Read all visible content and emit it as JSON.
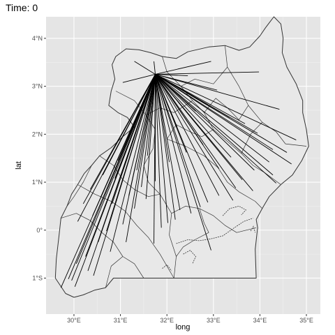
{
  "title": "Time: 0",
  "colors": {
    "panel": "#e5e5e5",
    "grid_major": "#ffffff",
    "grid_minor": "#f0f0f0",
    "country_fill": "#e8e8e8",
    "border": "#333333",
    "segment": "#000000",
    "tick_label": "#4d4d4d"
  },
  "chart_data": {
    "type": "map-segments",
    "title": "Time: 0",
    "xlabel": "long",
    "ylabel": "lat",
    "xlim": [
      29.4,
      35.3
    ],
    "ylim": [
      -1.75,
      4.45
    ],
    "x_ticks": [
      {
        "value": 30,
        "label": "30°E"
      },
      {
        "value": 31,
        "label": "31°E"
      },
      {
        "value": 32,
        "label": "32°E"
      },
      {
        "value": 33,
        "label": "33°E"
      },
      {
        "value": 34,
        "label": "34°E"
      },
      {
        "value": 35,
        "label": "35°E"
      }
    ],
    "y_ticks": [
      {
        "value": -1,
        "label": "1°S"
      },
      {
        "value": 0,
        "label": "0°"
      },
      {
        "value": 1,
        "label": "1°N"
      },
      {
        "value": 2,
        "label": "2°N"
      },
      {
        "value": 3,
        "label": "3°N"
      },
      {
        "value": 4,
        "label": "4°N"
      }
    ],
    "grid": true,
    "origin": [
      31.75,
      3.25
    ],
    "outline": [
      [
        29.6,
        -1.0
      ],
      [
        29.62,
        -0.6
      ],
      [
        29.68,
        -0.1
      ],
      [
        29.72,
        0.25
      ],
      [
        29.85,
        0.5
      ],
      [
        29.95,
        0.75
      ],
      [
        30.08,
        0.95
      ],
      [
        30.22,
        1.18
      ],
      [
        30.38,
        1.35
      ],
      [
        30.55,
        1.55
      ],
      [
        30.8,
        1.72
      ],
      [
        31.05,
        1.95
      ],
      [
        31.3,
        2.15
      ],
      [
        31.15,
        2.35
      ],
      [
        30.95,
        2.45
      ],
      [
        30.75,
        2.6
      ],
      [
        30.8,
        2.9
      ],
      [
        30.88,
        3.15
      ],
      [
        30.82,
        3.45
      ],
      [
        30.9,
        3.62
      ],
      [
        31.12,
        3.78
      ],
      [
        31.4,
        3.76
      ],
      [
        31.65,
        3.7
      ],
      [
        31.9,
        3.62
      ],
      [
        32.2,
        3.58
      ],
      [
        32.45,
        3.72
      ],
      [
        32.9,
        3.82
      ],
      [
        33.25,
        3.85
      ],
      [
        33.55,
        3.75
      ],
      [
        33.78,
        3.82
      ],
      [
        34.0,
        4.05
      ],
      [
        34.12,
        4.22
      ],
      [
        34.3,
        4.45
      ],
      [
        34.45,
        4.3
      ],
      [
        34.5,
        4.0
      ],
      [
        34.48,
        3.7
      ],
      [
        34.58,
        3.4
      ],
      [
        34.78,
        3.05
      ],
      [
        34.92,
        2.7
      ],
      [
        34.92,
        2.45
      ],
      [
        35.0,
        2.1
      ],
      [
        35.05,
        1.75
      ],
      [
        34.9,
        1.45
      ],
      [
        34.7,
        1.15
      ],
      [
        34.45,
        0.95
      ],
      [
        34.2,
        0.7
      ],
      [
        34.05,
        0.45
      ],
      [
        33.92,
        0.22
      ],
      [
        33.95,
        0.05
      ],
      [
        33.9,
        -0.4
      ],
      [
        33.92,
        -1.0
      ],
      [
        32.5,
        -1.0
      ],
      [
        31.5,
        -1.0
      ],
      [
        30.85,
        -1.0
      ],
      [
        30.68,
        -1.2
      ],
      [
        30.45,
        -1.25
      ],
      [
        30.2,
        -1.35
      ],
      [
        30.0,
        -1.4
      ],
      [
        29.82,
        -1.32
      ],
      [
        29.6,
        -1.0
      ]
    ],
    "internal_borders": [
      [
        [
          30.9,
          2.9
        ],
        [
          31.3,
          2.7
        ],
        [
          31.55,
          2.4
        ],
        [
          31.75,
          2.1
        ],
        [
          31.7,
          1.7
        ],
        [
          31.5,
          1.35
        ],
        [
          31.6,
          1.0
        ],
        [
          31.85,
          0.75
        ],
        [
          32.1,
          0.35
        ],
        [
          32.05,
          -0.1
        ],
        [
          32.2,
          -0.55
        ],
        [
          32.15,
          -1.0
        ]
      ],
      [
        [
          31.9,
          3.62
        ],
        [
          32.0,
          3.3
        ],
        [
          32.3,
          3.0
        ],
        [
          32.55,
          2.7
        ],
        [
          32.8,
          2.45
        ],
        [
          33.0,
          2.1
        ],
        [
          33.3,
          1.85
        ],
        [
          33.6,
          1.6
        ],
        [
          33.85,
          1.35
        ],
        [
          34.1,
          1.2
        ],
        [
          34.45,
          0.95
        ]
      ],
      [
        [
          33.25,
          3.85
        ],
        [
          33.3,
          3.4
        ],
        [
          33.55,
          3.0
        ],
        [
          33.75,
          2.6
        ],
        [
          34.05,
          2.25
        ],
        [
          34.35,
          2.05
        ],
        [
          34.55,
          1.8
        ],
        [
          35.0,
          1.75
        ]
      ],
      [
        [
          29.72,
          0.25
        ],
        [
          30.05,
          0.35
        ],
        [
          30.35,
          0.2
        ],
        [
          30.6,
          -0.05
        ],
        [
          30.85,
          -0.25
        ],
        [
          31.05,
          -0.55
        ],
        [
          31.3,
          -0.7
        ],
        [
          31.5,
          -1.0
        ]
      ],
      [
        [
          30.08,
          0.95
        ],
        [
          30.45,
          0.75
        ],
        [
          30.8,
          0.6
        ],
        [
          31.1,
          0.4
        ],
        [
          31.35,
          0.1
        ],
        [
          31.6,
          -0.15
        ],
        [
          31.85,
          -0.5
        ],
        [
          32.15,
          -1.0
        ]
      ],
      [
        [
          30.55,
          1.55
        ],
        [
          30.85,
          1.35
        ],
        [
          31.05,
          1.05
        ],
        [
          31.3,
          0.85
        ],
        [
          31.6,
          0.7
        ],
        [
          31.85,
          0.75
        ]
      ],
      [
        [
          32.3,
          3.0
        ],
        [
          32.6,
          3.15
        ],
        [
          33.0,
          3.05
        ],
        [
          33.3,
          3.4
        ]
      ],
      [
        [
          32.0,
          1.9
        ],
        [
          32.4,
          1.75
        ],
        [
          32.8,
          1.55
        ],
        [
          33.1,
          1.3
        ],
        [
          33.3,
          1.0
        ],
        [
          33.55,
          0.8
        ],
        [
          33.9,
          0.6
        ],
        [
          34.05,
          0.45
        ]
      ],
      [
        [
          32.1,
          0.35
        ],
        [
          32.4,
          0.5
        ],
        [
          32.7,
          0.45
        ],
        [
          33.0,
          0.3
        ],
        [
          33.25,
          0.1
        ],
        [
          33.5,
          -0.05
        ],
        [
          33.92,
          0.05
        ]
      ],
      [
        [
          31.55,
          2.4
        ],
        [
          31.85,
          2.55
        ],
        [
          32.15,
          2.45
        ],
        [
          32.55,
          2.7
        ]
      ],
      [
        [
          30.38,
          1.35
        ],
        [
          30.2,
          1.0
        ],
        [
          30.0,
          0.7
        ],
        [
          29.85,
          0.5
        ]
      ],
      [
        [
          32.8,
          2.45
        ],
        [
          33.05,
          2.75
        ],
        [
          33.3,
          2.55
        ],
        [
          33.55,
          2.3
        ],
        [
          33.75,
          2.6
        ]
      ],
      [
        [
          33.0,
          2.1
        ],
        [
          32.75,
          1.95
        ],
        [
          32.5,
          2.05
        ],
        [
          32.2,
          2.2
        ],
        [
          32.0,
          1.9
        ]
      ],
      [
        [
          34.05,
          2.25
        ],
        [
          33.8,
          2.0
        ],
        [
          33.6,
          1.6
        ]
      ],
      [
        [
          31.05,
          -0.55
        ],
        [
          30.8,
          -0.75
        ],
        [
          30.68,
          -1.2
        ]
      ],
      [
        [
          32.7,
          0.45
        ],
        [
          32.8,
          0.15
        ],
        [
          32.9,
          -0.05
        ],
        [
          32.6,
          -0.2
        ],
        [
          32.35,
          -0.35
        ],
        [
          32.2,
          -0.55
        ]
      ]
    ],
    "lake_shore": [
      [
        [
          32.2,
          -0.28
        ],
        [
          32.45,
          -0.2
        ],
        [
          32.7,
          -0.22
        ],
        [
          32.95,
          -0.18
        ],
        [
          33.2,
          -0.12
        ],
        [
          33.45,
          0.05
        ],
        [
          33.65,
          0.18
        ],
        [
          33.85,
          0.25
        ]
      ],
      [
        [
          32.35,
          -0.5
        ],
        [
          32.5,
          -0.42
        ],
        [
          32.62,
          -0.55
        ],
        [
          32.55,
          -0.7
        ]
      ],
      [
        [
          33.2,
          0.3
        ],
        [
          33.35,
          0.45
        ],
        [
          33.55,
          0.5
        ],
        [
          33.7,
          0.42
        ],
        [
          33.6,
          0.32
        ]
      ],
      [
        [
          31.9,
          -0.8
        ],
        [
          32.0,
          -0.72
        ],
        [
          32.1,
          -0.85
        ]
      ],
      [
        [
          33.8,
          -0.02
        ],
        [
          33.86,
          0.08
        ],
        [
          33.9,
          -0.05
        ]
      ]
    ],
    "segment_ends": [
      [
        31.3,
        3.52
      ],
      [
        31.05,
        3.08
      ],
      [
        31.72,
        3.52
      ],
      [
        32.95,
        3.52
      ],
      [
        33.98,
        3.3
      ],
      [
        32.45,
        3.22
      ],
      [
        33.08,
        2.92
      ],
      [
        34.42,
        2.52
      ],
      [
        33.35,
        2.35
      ],
      [
        33.68,
        2.22
      ],
      [
        34.78,
        1.88
      ],
      [
        33.95,
        2.02
      ],
      [
        34.28,
        1.68
      ],
      [
        34.58,
        1.62
      ],
      [
        34.68,
        1.38
      ],
      [
        34.2,
        1.42
      ],
      [
        33.88,
        1.25
      ],
      [
        33.62,
        1.05
      ],
      [
        34.28,
        1.15
      ],
      [
        34.35,
        0.98
      ],
      [
        33.38,
        1.52
      ],
      [
        33.12,
        1.28
      ],
      [
        33.48,
        0.88
      ],
      [
        33.85,
        0.82
      ],
      [
        33.42,
        0.62
      ],
      [
        33.12,
        0.72
      ],
      [
        32.88,
        0.58
      ],
      [
        32.72,
        0.48
      ],
      [
        32.52,
        0.35
      ],
      [
        32.28,
        0.42
      ],
      [
        32.18,
        0.22
      ],
      [
        32.02,
        0.15
      ],
      [
        31.88,
        0.05
      ],
      [
        31.72,
        -0.28
      ],
      [
        32.95,
        -0.42
      ],
      [
        32.05,
        1.42
      ],
      [
        32.42,
        1.62
      ],
      [
        32.78,
        1.78
      ],
      [
        31.75,
        1.02
      ],
      [
        31.55,
        0.65
      ],
      [
        31.45,
        0.9
      ],
      [
        31.3,
        0.45
      ],
      [
        31.18,
        0.72
      ],
      [
        31.05,
        0.12
      ],
      [
        30.88,
        1.08
      ],
      [
        30.82,
        0.55
      ],
      [
        30.62,
        1.15
      ],
      [
        30.7,
        -0.02
      ],
      [
        30.52,
        -0.25
      ],
      [
        30.35,
        0.85
      ],
      [
        30.4,
        0.3
      ],
      [
        30.2,
        0.55
      ],
      [
        30.25,
        -0.55
      ],
      [
        30.08,
        0.18
      ],
      [
        30.3,
        -0.85
      ],
      [
        30.05,
        -0.7
      ],
      [
        29.95,
        -1.05
      ],
      [
        30.02,
        -1.18
      ],
      [
        29.88,
        -1.02
      ],
      [
        29.72,
        -1.2
      ],
      [
        30.42,
        -0.95
      ],
      [
        30.78,
        -0.45
      ],
      [
        31.12,
        -0.25
      ],
      [
        30.58,
        0.7
      ],
      [
        31.35,
        1.25
      ],
      [
        30.95,
        1.45
      ],
      [
        31.58,
        1.55
      ],
      [
        31.22,
        1.72
      ],
      [
        32.22,
        2.15
      ],
      [
        32.62,
        2.48
      ],
      [
        32.88,
        2.62
      ],
      [
        31.62,
        2.25
      ]
    ]
  }
}
